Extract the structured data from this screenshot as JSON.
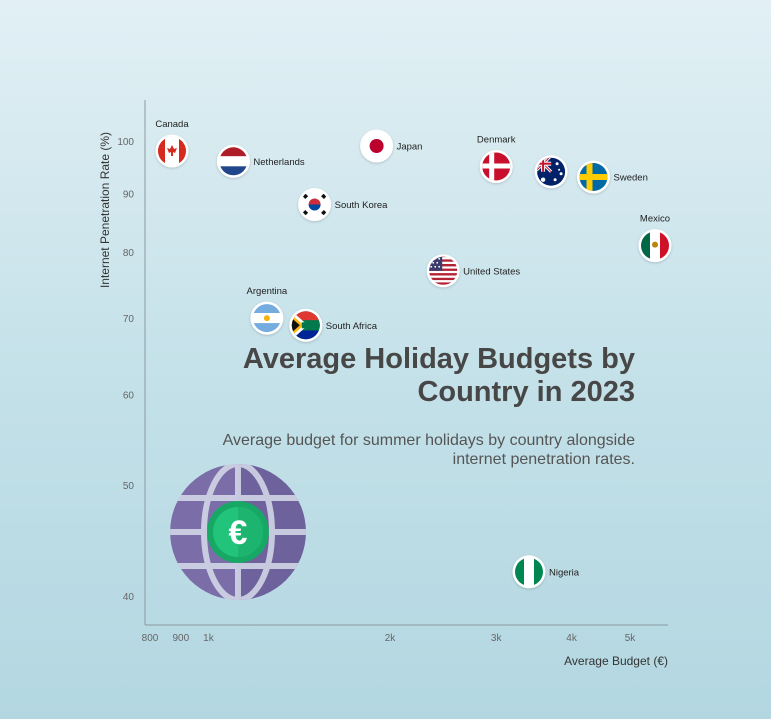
{
  "chart_data": {
    "type": "scatter",
    "title": "Average Holiday Budgets by Country in 2023",
    "subtitle": "Average budget for summer holidays by country alongside internet penetration rates.",
    "xlabel": "Average Budget (€)",
    "ylabel": "Internet Penetration Rate (%)",
    "xscale": "log",
    "yscale": "log",
    "xlim": [
      780,
      6200
    ],
    "ylim": [
      38,
      115
    ],
    "xticks": [
      {
        "value": 800,
        "label": "800"
      },
      {
        "value": 900,
        "label": "900"
      },
      {
        "value": 1000,
        "label": "1k"
      },
      {
        "value": 2000,
        "label": "2k"
      },
      {
        "value": 3000,
        "label": "3k"
      },
      {
        "value": 4000,
        "label": "4k"
      },
      {
        "value": 5000,
        "label": "5k"
      }
    ],
    "yticks": [
      {
        "value": 40,
        "label": "40"
      },
      {
        "value": 50,
        "label": "50"
      },
      {
        "value": 60,
        "label": "60"
      },
      {
        "value": 70,
        "label": "70"
      },
      {
        "value": 80,
        "label": "80"
      },
      {
        "value": 90,
        "label": "90"
      },
      {
        "value": 100,
        "label": "100"
      }
    ],
    "grid": false,
    "legend": "none",
    "points": [
      {
        "label": "Canada",
        "x": 870,
        "y": 98,
        "flag": "canada-flag",
        "label_pos": "above"
      },
      {
        "label": "Netherlands",
        "x": 1100,
        "y": 96,
        "flag": "netherlands-flag",
        "label_pos": "right"
      },
      {
        "label": "Japan",
        "x": 1900,
        "y": 99,
        "flag": "japan-flag",
        "label_pos": "right"
      },
      {
        "label": "Denmark",
        "x": 3000,
        "y": 95,
        "flag": "denmark-flag",
        "label_pos": "above"
      },
      {
        "label": "",
        "x": 3700,
        "y": 94,
        "flag": "australia-flag",
        "label_pos": "none"
      },
      {
        "label": "Sweden",
        "x": 4350,
        "y": 93,
        "flag": "sweden-flag",
        "label_pos": "right"
      },
      {
        "label": "South Korea",
        "x": 1500,
        "y": 88,
        "flag": "south-korea-flag",
        "label_pos": "right"
      },
      {
        "label": "Mexico",
        "x": 5500,
        "y": 81,
        "flag": "mexico-flag",
        "label_pos": "above"
      },
      {
        "label": "United States",
        "x": 2450,
        "y": 77,
        "flag": "usa-flag",
        "label_pos": "right"
      },
      {
        "label": "Argentina",
        "x": 1250,
        "y": 70,
        "flag": "argentina-flag",
        "label_pos": "above"
      },
      {
        "label": "South Africa",
        "x": 1450,
        "y": 69,
        "flag": "south-africa-flag",
        "label_pos": "right"
      },
      {
        "label": "Nigeria",
        "x": 3400,
        "y": 42,
        "flag": "nigeria-flag",
        "label_pos": "right"
      }
    ],
    "colors": {
      "axis": "#8a9aa0",
      "tick_text": "#666666",
      "label_text": "#222222",
      "globe": "#7b6ea8",
      "globe_lines": "#d6dcec",
      "coin": "#1bb870"
    }
  },
  "decor": {
    "icon": "globe-euro-icon"
  }
}
